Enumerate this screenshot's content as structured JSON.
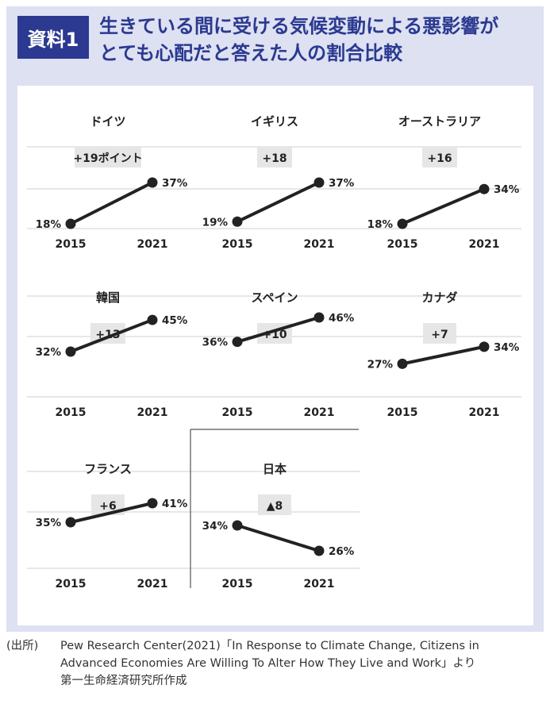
{
  "header": {
    "badge": "資料1",
    "title_lines": [
      "生きている間に受ける気候変動による悪影響が",
      "とても心配だと答えた人の割合比較"
    ]
  },
  "chart_data": [
    {
      "type": "line",
      "title": "ドイツ",
      "categories": [
        "2015",
        "2021"
      ],
      "values": [
        18,
        37
      ],
      "value_labels": [
        "18%",
        "37%"
      ],
      "change_label": "+19ポイント"
    },
    {
      "type": "line",
      "title": "イギリス",
      "categories": [
        "2015",
        "2021"
      ],
      "values": [
        19,
        37
      ],
      "value_labels": [
        "19%",
        "37%"
      ],
      "change_label": "+18"
    },
    {
      "type": "line",
      "title": "オーストラリア",
      "categories": [
        "2015",
        "2021"
      ],
      "values": [
        18,
        34
      ],
      "value_labels": [
        "18%",
        "34%"
      ],
      "change_label": "+16"
    },
    {
      "type": "line",
      "title": "韓国",
      "categories": [
        "2015",
        "2021"
      ],
      "values": [
        32,
        45
      ],
      "value_labels": [
        "32%",
        "45%"
      ],
      "change_label": "+13"
    },
    {
      "type": "line",
      "title": "スペイン",
      "categories": [
        "2015",
        "2021"
      ],
      "values": [
        36,
        46
      ],
      "value_labels": [
        "36%",
        "46%"
      ],
      "change_label": "+10"
    },
    {
      "type": "line",
      "title": "カナダ",
      "categories": [
        "2015",
        "2021"
      ],
      "values": [
        27,
        34
      ],
      "value_labels": [
        "27%",
        "34%"
      ],
      "change_label": "+7"
    },
    {
      "type": "line",
      "title": "フランス",
      "categories": [
        "2015",
        "2021"
      ],
      "values": [
        35,
        41
      ],
      "value_labels": [
        "35%",
        "41%"
      ],
      "change_label": "+6"
    },
    {
      "type": "line",
      "title": "日本",
      "categories": [
        "2015",
        "2021"
      ],
      "values": [
        34,
        26
      ],
      "value_labels": [
        "34%",
        "26%"
      ],
      "change_label": "▲8"
    }
  ],
  "source": {
    "label": "(出所)",
    "lines": [
      "Pew Research Center(2021)「In Response to Climate Change, Citizens in",
      "Advanced Economies Are Willing To Alter How They Live and Work」より",
      "第一生命経済研究所作成"
    ]
  },
  "colors": {
    "frame": "#dde1f1",
    "accent": "#2b3990",
    "line": "#222222",
    "change_box": "#e6e6e6",
    "grid": "#cfcfcf"
  }
}
